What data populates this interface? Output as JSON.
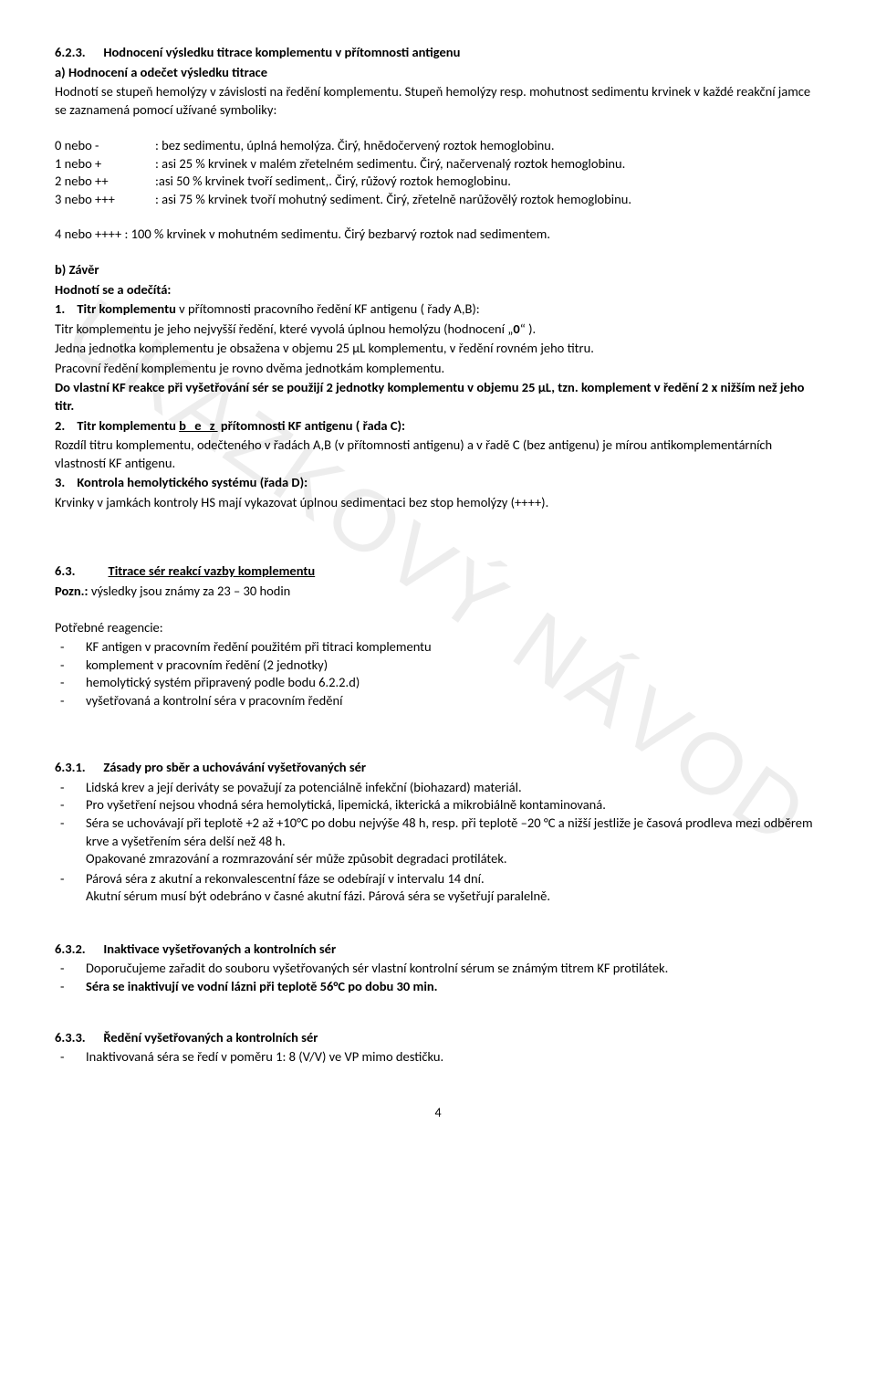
{
  "watermark": "UKÁZKOVÝ NÁVOD",
  "s623": {
    "num": "6.2.3.",
    "title": "Hodnocení výsledku titrace komplementu v přítomnosti antigenu",
    "a_label": "a) Hodnocení a odečet výsledku titrace",
    "a_p1": "Hodnotí se stupeň hemolýzy v závislosti na ředění komplementu. Stupeň hemolýzy resp. mohutnost sedimentu krvinek v každé reakční jamce se zaznamená  pomocí užívané symboliky:",
    "legend": [
      {
        "k": "0   nebo  -",
        "v": ": bez sedimentu,  úplná hemolýza. Čirý,  hnědočervený roztok hemoglobinu."
      },
      {
        "k": "1   nebo  +",
        "v": ": asi 25 % krvinek v malém zřetelném sedimentu. Čirý, načervenalý roztok hemoglobinu."
      },
      {
        "k": "2   nebo  ++",
        "v": ":asi 50 % krvinek tvoří sediment,. Čirý, růžový roztok hemoglobinu."
      },
      {
        "k": "3   nebo  +++",
        "v": ": asi 75 % krvinek tvoří mohutný sediment. Čirý, zřetelně narůžovělý roztok hemoglobinu."
      }
    ],
    "legend4": "4   nebo  ++++ : 100 % krvinek v mohutném sedimentu. Čirý bezbarvý roztok nad sedimentem.",
    "b_label": "b) Závěr",
    "b_sub": "Hodnotí se a odečítá:",
    "b1_prefix": "1.",
    "b1_bold": "Titr komplementu",
    "b1_rest": " v přítomnosti pracovního ředění KF antigenu ( řady A,B):",
    "b1_p1_a": "Titr komplementu  je jeho nejvyšší ředění, které vyvolá úplnou hemolýzu (hodnocení „",
    "b1_p1_b": "0",
    "b1_p1_c": "“ ).",
    "b1_p2": "Jedna jednotka komplementu  je obsažena v objemu  25 µL  komplementu, v  ředění  rovném jeho titru.",
    "b1_p3": "Pracovní ředění komplementu  je rovno dvěma jednotkám komplementu.",
    "b1_p4": "Do vlastní KF reakce při vyšetřování sér se použijí 2 jednotky komplementu v objemu 25 µL, tzn. komplement v ředění 2 x nižším než jeho titr.",
    "b2_prefix": "2.",
    "b2_bold": "Titr komplementu  ",
    "b2_spaced": "b e z",
    "b2_rest": "  přítomnosti KF antigenu  ( řada C):",
    "b2_p1": "Rozdíl  titru  komplementu, odečteného v řadách A,B (v přítomnosti antigenu)  a v řadě C (bez antigenu) je mírou antikomplementárních vlastností KF antigenu.",
    "b3_prefix": "3.",
    "b3_bold": "Kontrola hemolytického systému (řada D):",
    "b3_p1": "Krvinky v jamkách kontroly HS mají vykazovat úplnou sedimentaci bez stop hemolýzy (++++)."
  },
  "s63": {
    "num": "6.3.",
    "title": "Titrace sér reakcí vazby komplementu",
    "note_label": "Pozn.:",
    "note_text": " výsledky jsou známy za 23 – 30 hodin",
    "reagents_label": "Potřebné reagencie:",
    "reagents": [
      "KF antigen v pracovním ředění použitém při titraci komplementu",
      "komplement v  pracovním ředění (2 jednotky)",
      "hemolytický systém připravený podle bodu 6.2.2.d)",
      "vyšetřovaná a kontrolní séra v pracovním ředění"
    ]
  },
  "s631": {
    "num": "6.3.1.",
    "title": "Zásady pro sběr a uchovávání vyšetřovaných sér",
    "items": [
      "Lidská krev a její deriváty  se považují za potenciálně infekční (biohazard) materiál.",
      "Pro vyšetření nejsou vhodná séra hemolytická, lipemická, ikterická a mikrobiálně kontaminovaná.",
      "Séra se uchovávají při teplotě +2 až +10°C po dobu nejvýše 48 h,  resp. při  teplotě –20 °C a nižší jestliže je časová prodleva mezi odběrem krve a vyšetřením séra delší než 48 h."
    ],
    "cont1": "Opakované zmrazování a rozmrazování sér může způsobit degradaci protilátek.",
    "item4": "Párová séra z akutní a rekonvalescentní fáze se odebírají v intervalu 14 dní.",
    "cont2": "Akutní sérum musí být odebráno v časné akutní  fázi.  Párová séra se vyšetřují paralelně."
  },
  "s632": {
    "num": "6.3.2.",
    "title": "Inaktivace vyšetřovaných a kontrolních  sér",
    "item1": "Doporučujeme zařadit do souboru vyšetřovaných sér vlastní kontrolní sérum se známým titrem KF protilátek.",
    "item2": "Séra se inaktivují ve vodní lázni při teplotě 56°C po dobu 30 min."
  },
  "s633": {
    "num": "6.3.3.",
    "title": "Ředění  vyšetřovaných a kontrolních  sér",
    "item1": "Inaktivovaná séra se ředí  v poměru 1: 8 (V/V) ve VP mimo destičku."
  },
  "page": "4"
}
